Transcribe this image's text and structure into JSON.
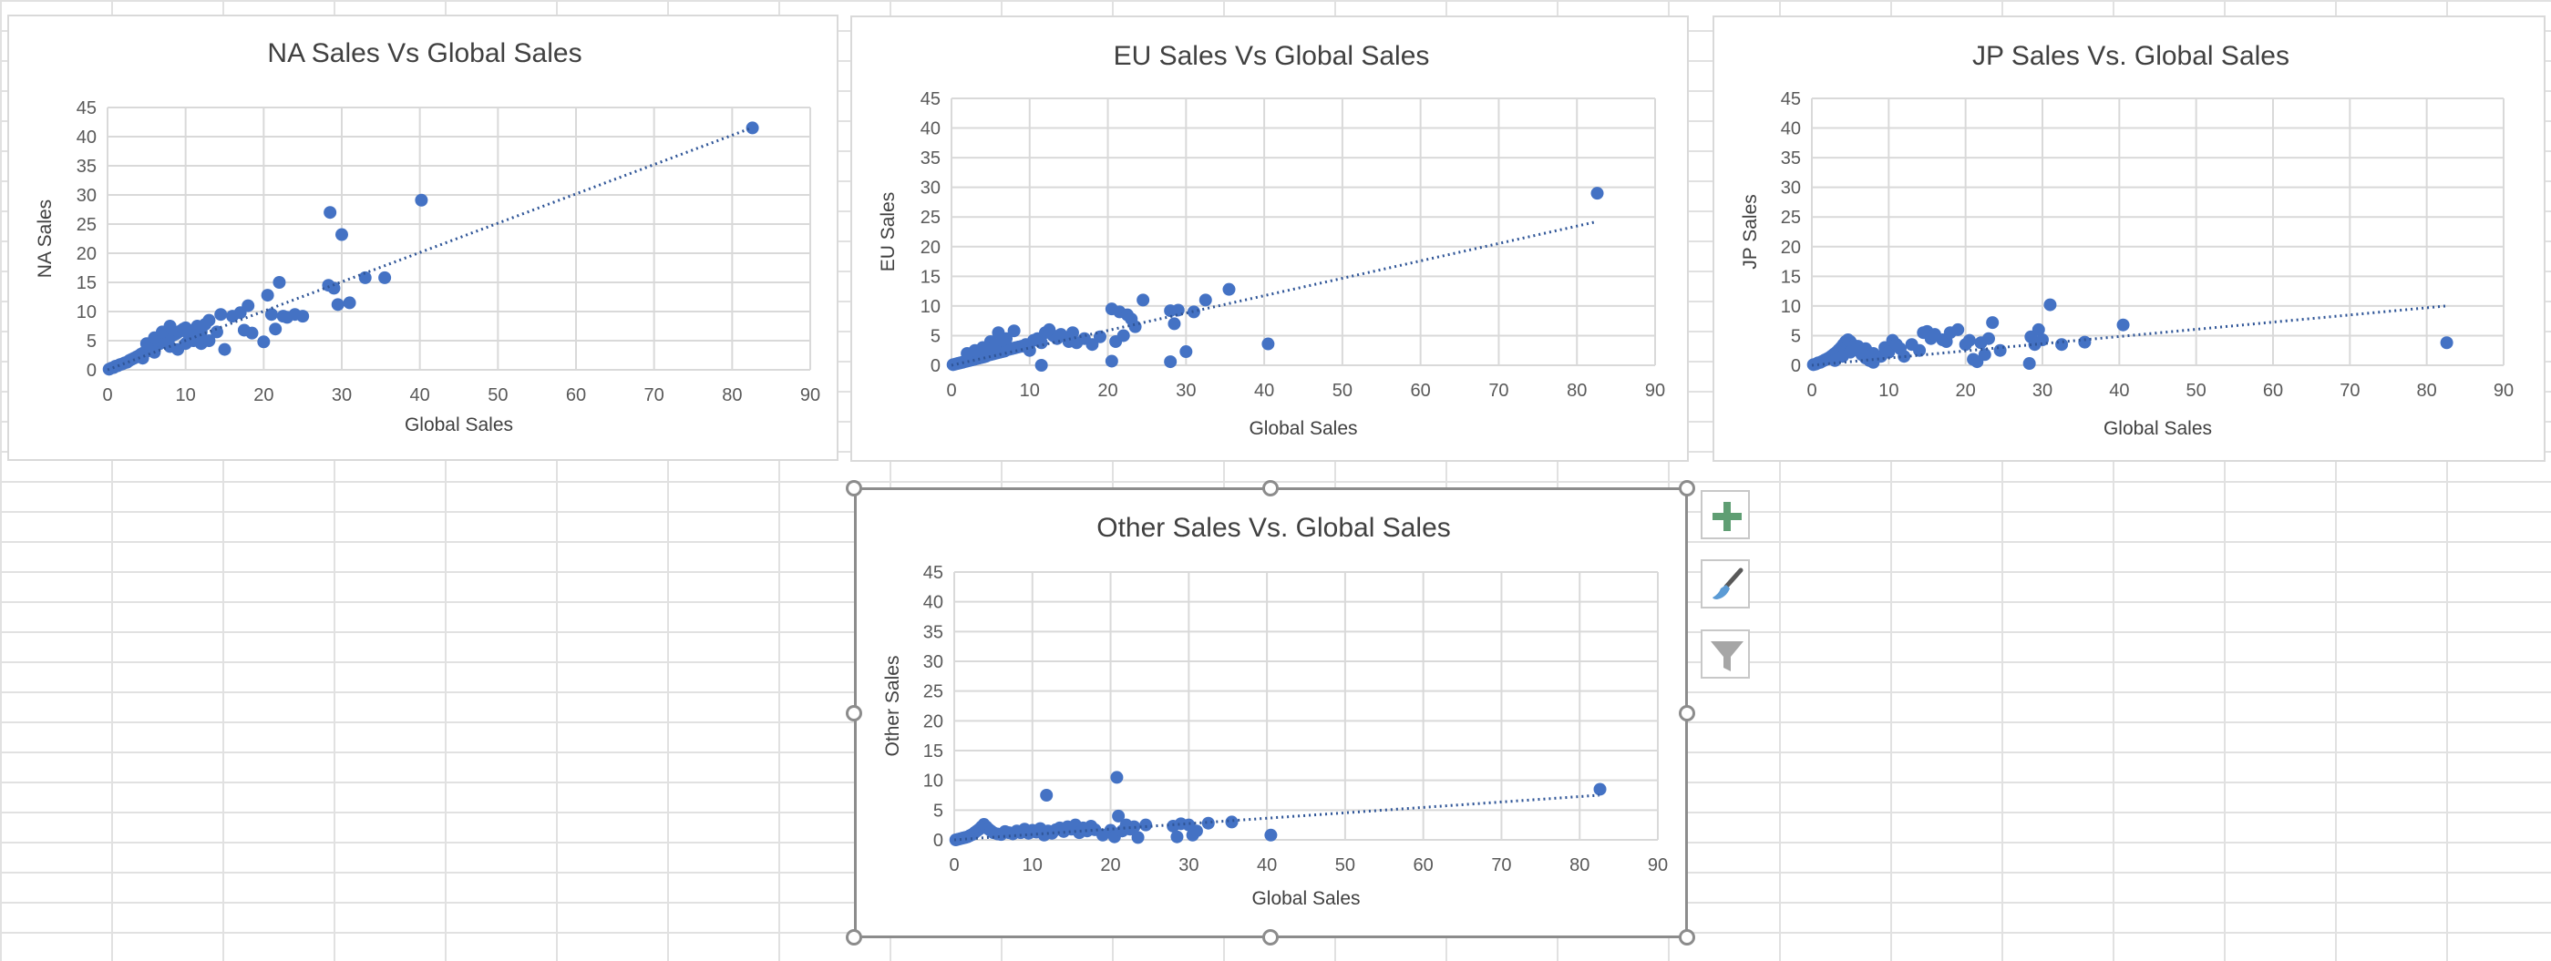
{
  "colors": {
    "marker": "#4472c4",
    "trendline": "#2f5597",
    "gridline": "#d9d9d9",
    "plus": "#5f9e73",
    "funnel": "#a6a6a6"
  },
  "chart_tools": [
    {
      "name": "chart-elements-button",
      "icon": "plus-icon"
    },
    {
      "name": "chart-styles-button",
      "icon": "paintbrush-icon"
    },
    {
      "name": "chart-filters-button",
      "icon": "funnel-icon"
    }
  ],
  "chart_data": [
    {
      "id": "na",
      "type": "scatter",
      "title": "NA Sales Vs Global Sales",
      "xlabel": "Global Sales",
      "ylabel": "NA Sales",
      "xlim": [
        0,
        90
      ],
      "ylim": [
        0,
        45
      ],
      "x_ticks": [
        0,
        10,
        20,
        30,
        40,
        50,
        60,
        70,
        80,
        90
      ],
      "y_ticks": [
        0,
        5,
        10,
        15,
        20,
        25,
        30,
        35,
        40,
        45
      ],
      "grid": true,
      "legend": "none",
      "trendline": {
        "type": "linear",
        "x": [
          0,
          82.5
        ],
        "y": [
          0,
          41.5
        ]
      },
      "points": [
        [
          0.2,
          0.1
        ],
        [
          0.5,
          0.3
        ],
        [
          0.8,
          0.4
        ],
        [
          1.0,
          0.6
        ],
        [
          1.3,
          0.7
        ],
        [
          1.6,
          0.9
        ],
        [
          1.9,
          1.0
        ],
        [
          2.2,
          1.2
        ],
        [
          2.5,
          1.3
        ],
        [
          2.8,
          1.6
        ],
        [
          3.1,
          1.8
        ],
        [
          3.4,
          2.0
        ],
        [
          3.7,
          2.2
        ],
        [
          4.0,
          2.4
        ],
        [
          4.3,
          2.7
        ],
        [
          4.6,
          2.9
        ],
        [
          4.9,
          3.1
        ],
        [
          5.2,
          3.3
        ],
        [
          5.5,
          3.6
        ],
        [
          5.8,
          3.8
        ],
        [
          6.1,
          4.0
        ],
        [
          6.4,
          4.3
        ],
        [
          6.7,
          4.5
        ],
        [
          7.0,
          4.8
        ],
        [
          7.3,
          5.0
        ],
        [
          7.6,
          5.3
        ],
        [
          7.9,
          5.5
        ],
        [
          8.2,
          5.8
        ],
        [
          8.5,
          6.0
        ],
        [
          8.8,
          6.2
        ],
        [
          9.1,
          6.5
        ],
        [
          9.4,
          6.7
        ],
        [
          9.7,
          7.0
        ],
        [
          10.0,
          7.2
        ],
        [
          10.5,
          5.5
        ],
        [
          11.0,
          6.8
        ],
        [
          11.5,
          7.5
        ],
        [
          12.0,
          6.5
        ],
        [
          12.5,
          7.8
        ],
        [
          13.0,
          8.5
        ],
        [
          5.0,
          4.5
        ],
        [
          6.0,
          5.5
        ],
        [
          7.0,
          6.5
        ],
        [
          8.0,
          7.5
        ],
        [
          4.5,
          2.0
        ],
        [
          6.0,
          3.0
        ],
        [
          8.0,
          4.0
        ],
        [
          9.0,
          3.5
        ],
        [
          10.0,
          4.5
        ],
        [
          11.0,
          5.0
        ],
        [
          12.0,
          4.5
        ],
        [
          13.0,
          5.0
        ],
        [
          14.0,
          6.5
        ],
        [
          14.5,
          9.5
        ],
        [
          15.0,
          3.5
        ],
        [
          16.0,
          9.2
        ],
        [
          17.0,
          9.8
        ],
        [
          17.5,
          6.8
        ],
        [
          18.0,
          11.0
        ],
        [
          18.5,
          6.3
        ],
        [
          20.0,
          4.8
        ],
        [
          20.5,
          12.8
        ],
        [
          21.0,
          9.5
        ],
        [
          21.5,
          7.0
        ],
        [
          22.0,
          15.0
        ],
        [
          22.5,
          9.2
        ],
        [
          23.0,
          9.0
        ],
        [
          24.0,
          9.5
        ],
        [
          25.0,
          9.2
        ],
        [
          28.5,
          27.0
        ],
        [
          28.3,
          14.5
        ],
        [
          29.0,
          14.0
        ],
        [
          29.5,
          11.2
        ],
        [
          30.0,
          23.2
        ],
        [
          31.0,
          11.5
        ],
        [
          33.0,
          15.8
        ],
        [
          35.5,
          15.8
        ],
        [
          40.2,
          29.1
        ],
        [
          82.6,
          41.5
        ]
      ]
    },
    {
      "id": "eu",
      "type": "scatter",
      "title": "EU Sales Vs Global Sales",
      "xlabel": "Global Sales",
      "ylabel": "EU Sales",
      "xlim": [
        0,
        90
      ],
      "ylim": [
        0,
        45
      ],
      "x_ticks": [
        0,
        10,
        20,
        30,
        40,
        50,
        60,
        70,
        80,
        90
      ],
      "y_ticks": [
        0,
        5,
        10,
        15,
        20,
        25,
        30,
        35,
        40,
        45
      ],
      "grid": true,
      "legend": "none",
      "trendline": {
        "type": "linear",
        "x": [
          0,
          82.5
        ],
        "y": [
          0,
          24.2
        ]
      },
      "points": [
        [
          0.2,
          0.1
        ],
        [
          0.5,
          0.2
        ],
        [
          0.8,
          0.3
        ],
        [
          1.1,
          0.4
        ],
        [
          1.4,
          0.5
        ],
        [
          1.7,
          0.6
        ],
        [
          2.0,
          0.7
        ],
        [
          2.3,
          0.8
        ],
        [
          2.6,
          0.9
        ],
        [
          2.9,
          1.0
        ],
        [
          3.2,
          1.1
        ],
        [
          3.5,
          1.2
        ],
        [
          3.8,
          1.3
        ],
        [
          4.1,
          1.4
        ],
        [
          4.4,
          1.5
        ],
        [
          4.7,
          1.7
        ],
        [
          5.0,
          1.8
        ],
        [
          5.3,
          1.9
        ],
        [
          5.6,
          2.0
        ],
        [
          5.9,
          2.1
        ],
        [
          6.2,
          2.2
        ],
        [
          6.5,
          2.3
        ],
        [
          6.8,
          2.4
        ],
        [
          7.1,
          2.6
        ],
        [
          7.4,
          2.7
        ],
        [
          7.7,
          2.8
        ],
        [
          8.0,
          2.9
        ],
        [
          8.3,
          3.0
        ],
        [
          8.6,
          3.1
        ],
        [
          9.0,
          3.2
        ],
        [
          2.0,
          2.0
        ],
        [
          3.0,
          2.5
        ],
        [
          4.0,
          3.0
        ],
        [
          5.0,
          4.0
        ],
        [
          6.0,
          5.5
        ],
        [
          7.0,
          4.5
        ],
        [
          8.0,
          5.8
        ],
        [
          4.5,
          2.3
        ],
        [
          5.5,
          3.2
        ],
        [
          6.5,
          4.2
        ],
        [
          9.5,
          3.5
        ],
        [
          10.0,
          2.5
        ],
        [
          10.5,
          4.2
        ],
        [
          11.0,
          4.5
        ],
        [
          11.5,
          3.8
        ],
        [
          12.0,
          5.5
        ],
        [
          12.5,
          6.0
        ],
        [
          13.0,
          5.0
        ],
        [
          13.5,
          4.5
        ],
        [
          14.0,
          5.2
        ],
        [
          15.0,
          4.0
        ],
        [
          15.5,
          5.5
        ],
        [
          16.0,
          3.8
        ],
        [
          17.0,
          4.5
        ],
        [
          18.0,
          3.5
        ],
        [
          19.0,
          4.8
        ],
        [
          11.5,
          0.0
        ],
        [
          20.5,
          0.7
        ],
        [
          20.5,
          9.5
        ],
        [
          21.0,
          4.0
        ],
        [
          21.5,
          9.0
        ],
        [
          22.0,
          5.0
        ],
        [
          22.5,
          8.5
        ],
        [
          23.0,
          7.8
        ],
        [
          23.5,
          6.5
        ],
        [
          24.5,
          11.0
        ],
        [
          28.0,
          9.2
        ],
        [
          28.5,
          7.0
        ],
        [
          28.0,
          0.6
        ],
        [
          29.0,
          9.3
        ],
        [
          30.0,
          2.3
        ],
        [
          31.0,
          9.0
        ],
        [
          32.5,
          11.0
        ],
        [
          35.5,
          12.8
        ],
        [
          40.5,
          3.6
        ],
        [
          82.6,
          29.0
        ]
      ]
    },
    {
      "id": "jp",
      "type": "scatter",
      "title": "JP Sales Vs. Global Sales",
      "xlabel": "Global Sales",
      "ylabel": "JP Sales",
      "xlim": [
        0,
        90
      ],
      "ylim": [
        0,
        45
      ],
      "x_ticks": [
        0,
        10,
        20,
        30,
        40,
        50,
        60,
        70,
        80,
        90
      ],
      "y_ticks": [
        0,
        5,
        10,
        15,
        20,
        25,
        30,
        35,
        40,
        45
      ],
      "grid": true,
      "legend": "none",
      "trendline": {
        "type": "linear",
        "x": [
          0,
          82.5
        ],
        "y": [
          0,
          10.0
        ]
      },
      "points": [
        [
          0.2,
          0.1
        ],
        [
          0.5,
          0.2
        ],
        [
          0.8,
          0.4
        ],
        [
          1.1,
          0.5
        ],
        [
          1.4,
          0.7
        ],
        [
          1.7,
          0.9
        ],
        [
          2.0,
          1.1
        ],
        [
          2.3,
          1.3
        ],
        [
          2.6,
          1.6
        ],
        [
          2.9,
          1.9
        ],
        [
          3.2,
          2.2
        ],
        [
          3.5,
          2.6
        ],
        [
          3.8,
          3.0
        ],
        [
          4.1,
          3.5
        ],
        [
          4.4,
          4.0
        ],
        [
          4.7,
          4.3
        ],
        [
          5.0,
          4.0
        ],
        [
          5.5,
          3.3
        ],
        [
          6.0,
          2.5
        ],
        [
          6.5,
          1.8
        ],
        [
          7.0,
          1.2
        ],
        [
          7.5,
          0.8
        ],
        [
          8.0,
          0.5
        ],
        [
          3.0,
          0.8
        ],
        [
          4.0,
          1.5
        ],
        [
          5.0,
          2.2
        ],
        [
          6.0,
          3.2
        ],
        [
          7.0,
          2.8
        ],
        [
          8.0,
          2.0
        ],
        [
          9.0,
          1.5
        ],
        [
          9.5,
          3.0
        ],
        [
          10.0,
          2.2
        ],
        [
          10.5,
          4.2
        ],
        [
          11.0,
          3.5
        ],
        [
          11.5,
          2.8
        ],
        [
          12.0,
          1.5
        ],
        [
          13.0,
          3.5
        ],
        [
          14.0,
          2.5
        ],
        [
          14.5,
          5.5
        ],
        [
          15.0,
          5.7
        ],
        [
          15.5,
          4.5
        ],
        [
          16.0,
          5.2
        ],
        [
          17.0,
          4.3
        ],
        [
          17.5,
          4.0
        ],
        [
          18.0,
          5.5
        ],
        [
          19.0,
          6.0
        ],
        [
          20.0,
          3.5
        ],
        [
          20.5,
          4.2
        ],
        [
          21.0,
          1.0
        ],
        [
          21.5,
          0.6
        ],
        [
          22.0,
          3.8
        ],
        [
          22.5,
          1.8
        ],
        [
          23.0,
          4.5
        ],
        [
          23.5,
          7.2
        ],
        [
          24.5,
          2.5
        ],
        [
          28.5,
          4.8
        ],
        [
          28.3,
          0.3
        ],
        [
          29.0,
          3.5
        ],
        [
          29.5,
          6.0
        ],
        [
          30.0,
          4.3
        ],
        [
          31.0,
          10.2
        ],
        [
          32.5,
          3.5
        ],
        [
          35.5,
          3.9
        ],
        [
          40.5,
          6.8
        ],
        [
          82.6,
          3.8
        ]
      ]
    },
    {
      "id": "other",
      "type": "scatter",
      "title": "Other Sales Vs. Global Sales",
      "xlabel": "Global Sales",
      "ylabel": "Other Sales",
      "xlim": [
        0,
        90
      ],
      "ylim": [
        0,
        45
      ],
      "x_ticks": [
        0,
        10,
        20,
        30,
        40,
        50,
        60,
        70,
        80,
        90
      ],
      "y_ticks": [
        0,
        5,
        10,
        15,
        20,
        25,
        30,
        35,
        40,
        45
      ],
      "grid": true,
      "legend": "none",
      "trendline": {
        "type": "linear",
        "x": [
          0,
          82.5
        ],
        "y": [
          0,
          7.5
        ]
      },
      "points": [
        [
          0.2,
          0.0
        ],
        [
          0.5,
          0.1
        ],
        [
          0.8,
          0.2
        ],
        [
          1.1,
          0.3
        ],
        [
          1.4,
          0.4
        ],
        [
          1.7,
          0.5
        ],
        [
          2.0,
          0.7
        ],
        [
          2.3,
          0.9
        ],
        [
          2.6,
          1.2
        ],
        [
          2.9,
          1.5
        ],
        [
          3.2,
          1.8
        ],
        [
          3.5,
          2.2
        ],
        [
          3.8,
          2.6
        ],
        [
          4.1,
          2.2
        ],
        [
          4.4,
          1.8
        ],
        [
          4.7,
          1.5
        ],
        [
          5.0,
          1.2
        ],
        [
          5.5,
          1.0
        ],
        [
          6.0,
          0.9
        ],
        [
          6.5,
          1.4
        ],
        [
          7.0,
          1.2
        ],
        [
          7.5,
          1.0
        ],
        [
          8.0,
          1.5
        ],
        [
          8.5,
          1.2
        ],
        [
          9.0,
          1.8
        ],
        [
          9.5,
          1.1
        ],
        [
          10.0,
          1.6
        ],
        [
          10.5,
          1.3
        ],
        [
          11.0,
          1.9
        ],
        [
          11.5,
          0.8
        ],
        [
          11.8,
          7.5
        ],
        [
          12.0,
          1.5
        ],
        [
          12.5,
          1.1
        ],
        [
          13.0,
          1.7
        ],
        [
          13.5,
          2.0
        ],
        [
          14.0,
          1.4
        ],
        [
          14.5,
          2.2
        ],
        [
          15.0,
          1.8
        ],
        [
          15.5,
          2.5
        ],
        [
          16.0,
          1.2
        ],
        [
          16.5,
          2.0
        ],
        [
          17.0,
          1.5
        ],
        [
          17.5,
          2.3
        ],
        [
          18.0,
          1.7
        ],
        [
          19.0,
          0.8
        ],
        [
          20.0,
          1.6
        ],
        [
          20.5,
          0.5
        ],
        [
          20.8,
          10.5
        ],
        [
          21.0,
          4.0
        ],
        [
          21.5,
          1.5
        ],
        [
          22.0,
          2.5
        ],
        [
          22.5,
          1.8
        ],
        [
          23.0,
          2.2
        ],
        [
          23.5,
          0.4
        ],
        [
          24.5,
          2.5
        ],
        [
          28.0,
          2.3
        ],
        [
          28.5,
          0.5
        ],
        [
          29.0,
          2.7
        ],
        [
          30.0,
          2.5
        ],
        [
          30.5,
          0.8
        ],
        [
          31.0,
          1.5
        ],
        [
          32.5,
          2.8
        ],
        [
          35.5,
          3.0
        ],
        [
          40.5,
          0.8
        ],
        [
          82.6,
          8.5
        ]
      ]
    }
  ]
}
